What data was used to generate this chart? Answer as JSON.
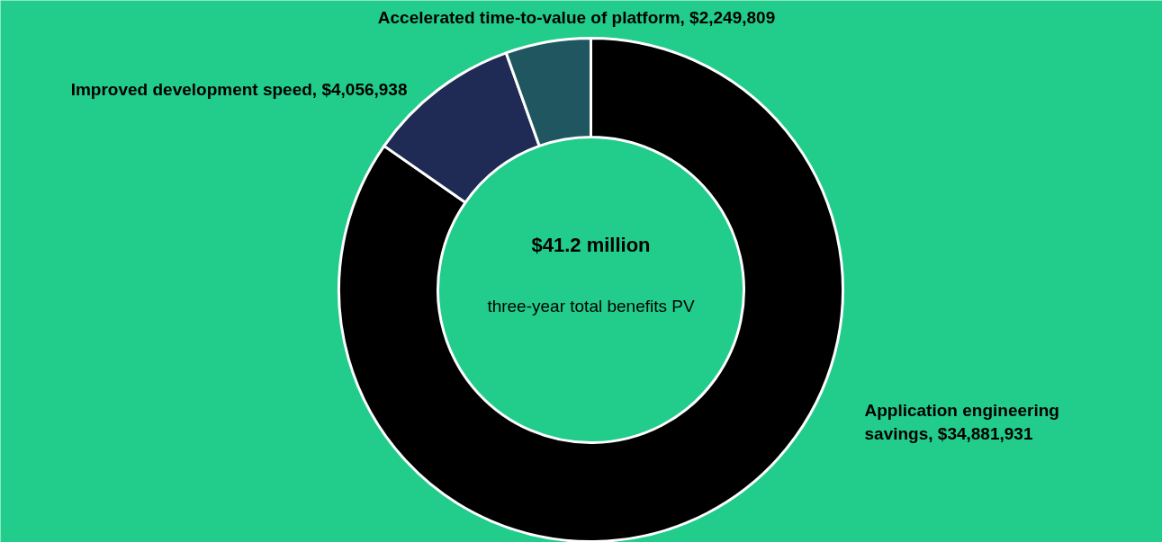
{
  "chart_data": {
    "type": "donut",
    "categories": [
      "Application engineering savings",
      "Improved development speed",
      "Accelerated time-to-value of platform"
    ],
    "values": [
      34881931,
      4056938,
      2249809
    ],
    "value_labels": [
      "$34,881,931",
      "$4,056,938",
      "$2,249,809"
    ],
    "colors": [
      "#000000",
      "#1f2a55",
      "#1f5660"
    ],
    "annotations": [
      "$41.2 million",
      "three-year total benefits PV"
    ],
    "legend": false
  }
}
